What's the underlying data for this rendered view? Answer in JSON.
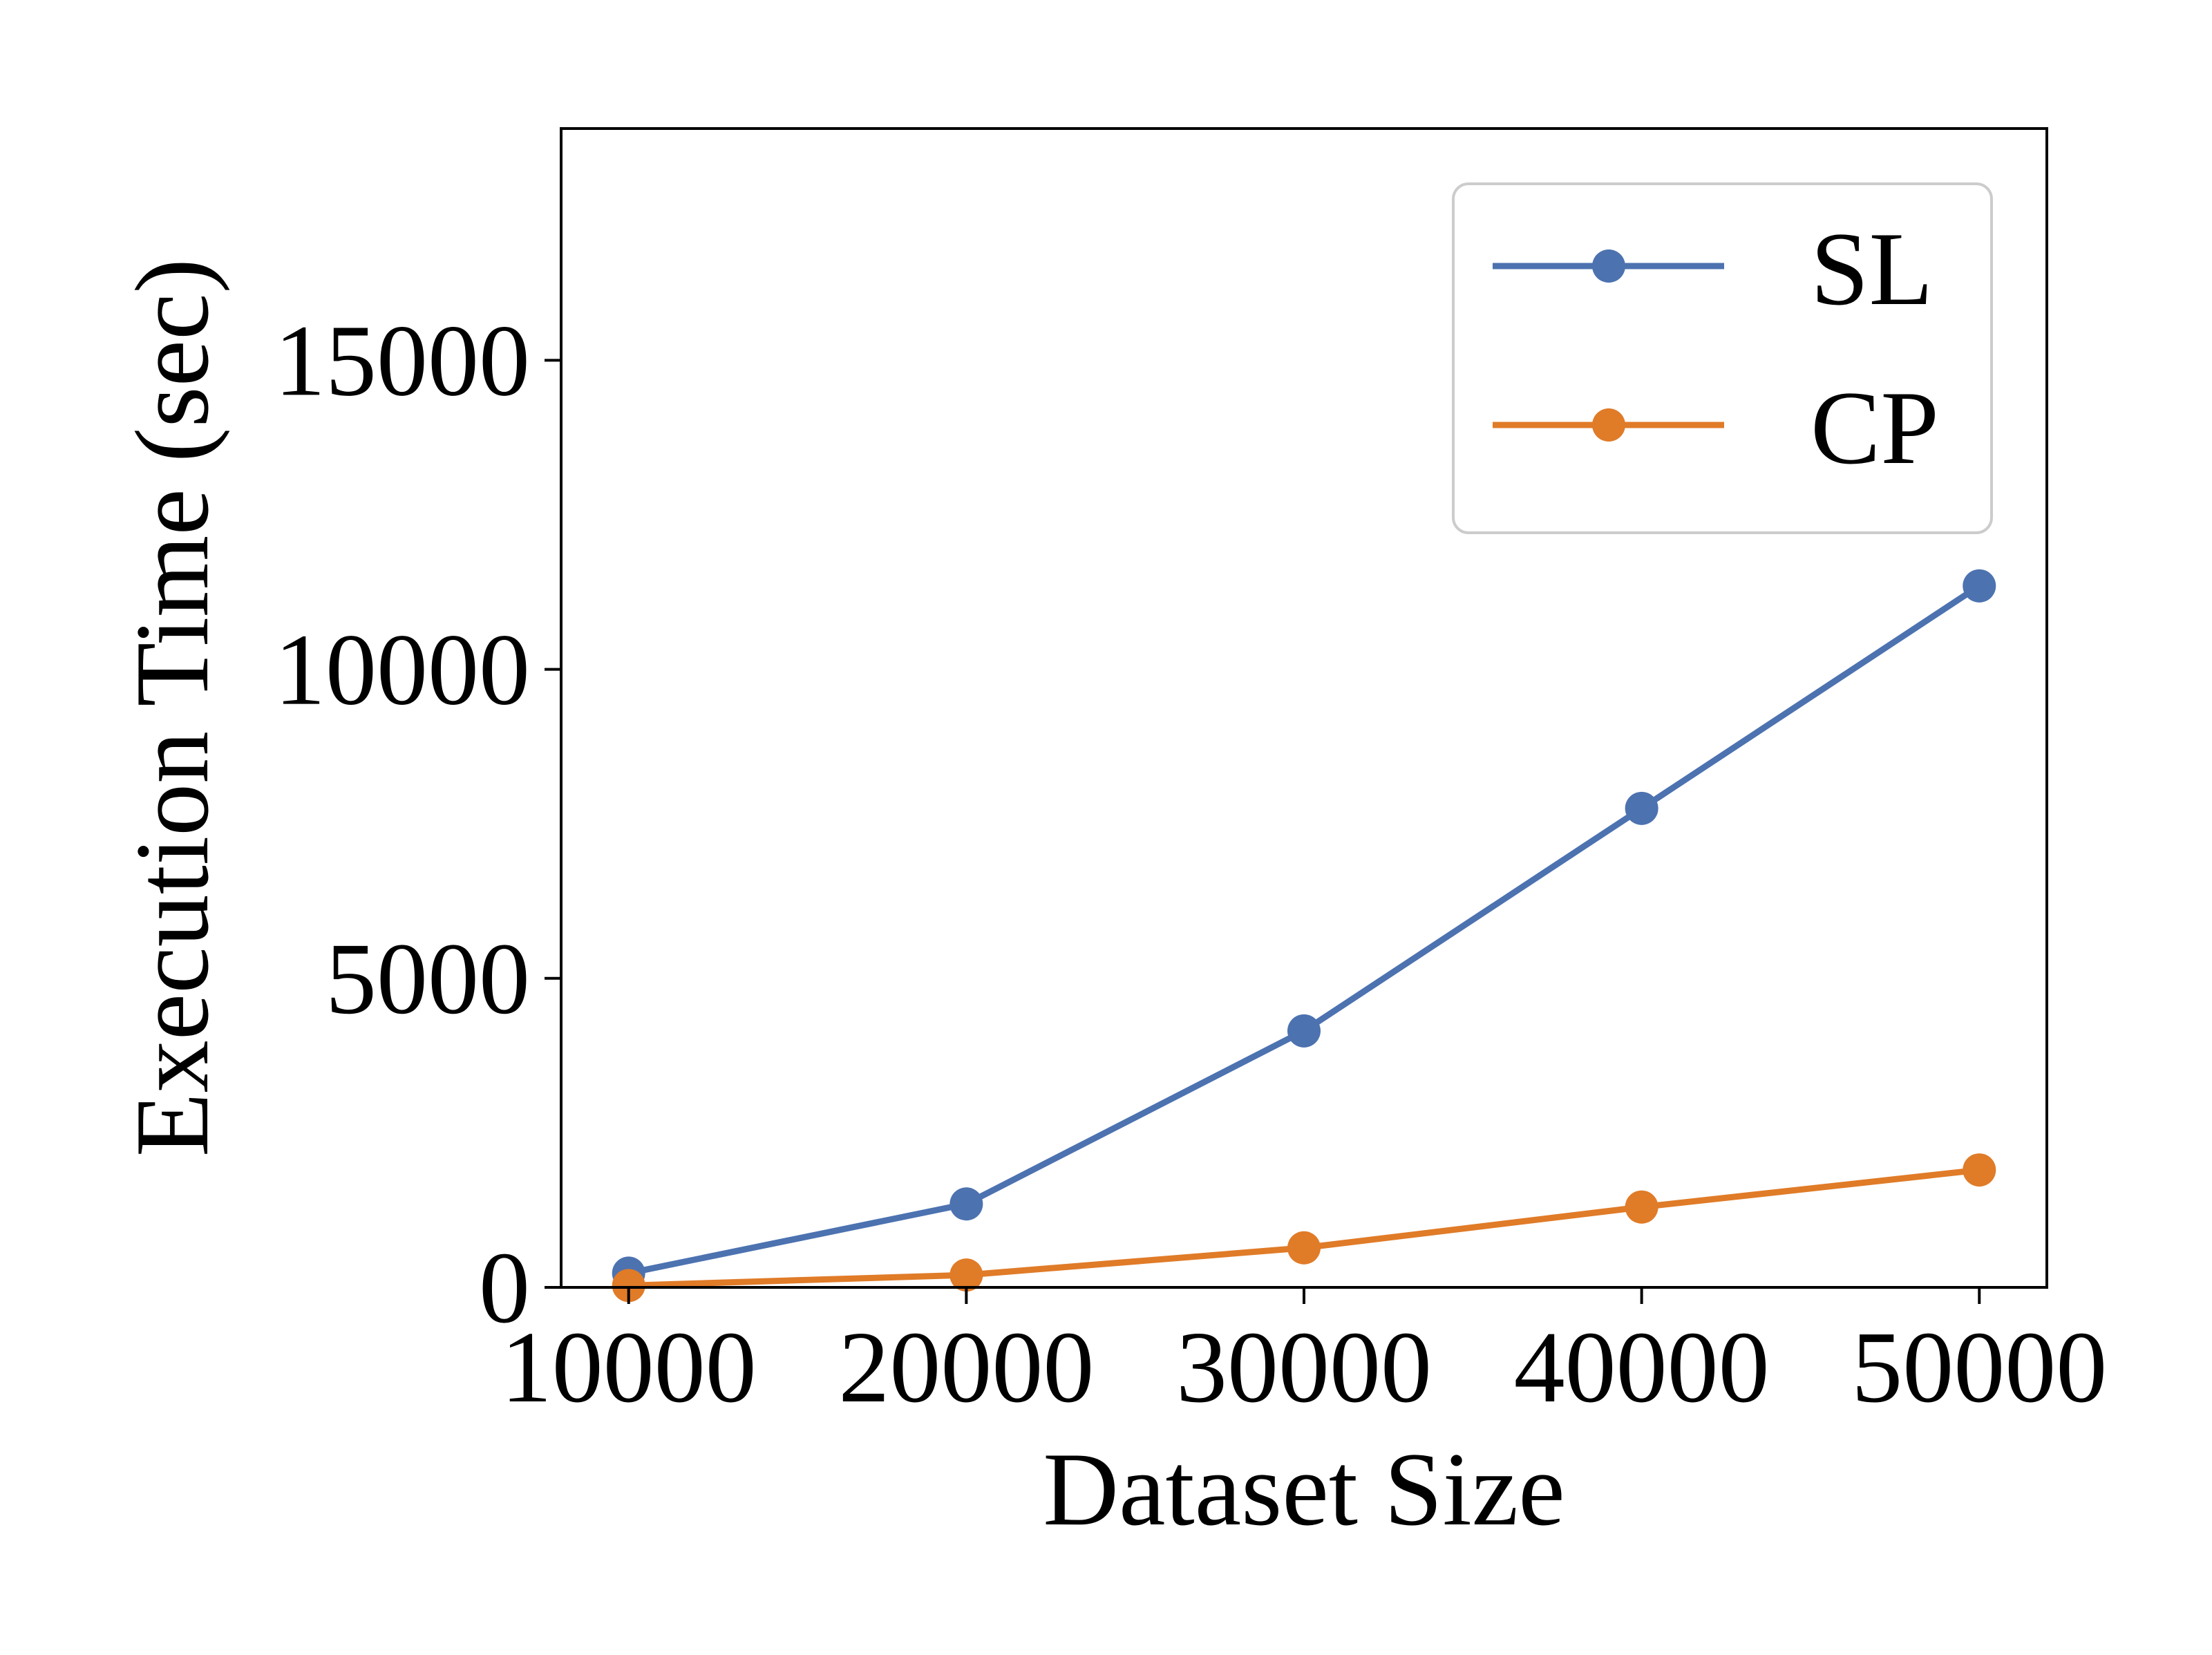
{
  "chart_data": {
    "type": "line",
    "title": "",
    "xlabel": "Dataset Size",
    "ylabel": "Execution Time (sec)",
    "x": [
      10000,
      20000,
      30000,
      40000,
      50000
    ],
    "xticks": [
      10000,
      20000,
      30000,
      40000,
      50000
    ],
    "yticks": [
      0,
      5000,
      10000,
      15000
    ],
    "xlim": [
      8000,
      52000
    ],
    "ylim": [
      0,
      18750
    ],
    "grid": false,
    "legend_position": "top-right",
    "series": [
      {
        "name": "SL",
        "color": "#4c72b0",
        "values": [
          230,
          1350,
          4150,
          7750,
          11350
        ]
      },
      {
        "name": "CP",
        "color": "#e07b28",
        "values": [
          30,
          200,
          640,
          1300,
          1900
        ]
      }
    ]
  }
}
